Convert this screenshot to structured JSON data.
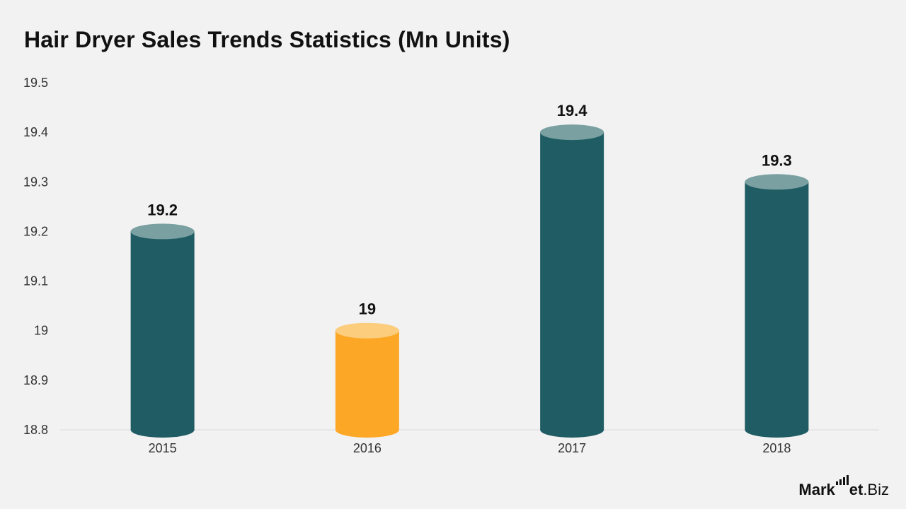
{
  "chart_data": {
    "type": "bar",
    "title": "Hair Dryer Sales Trends Statistics (Mn Units)",
    "xlabel": "",
    "ylabel": "",
    "categories": [
      "2015",
      "2016",
      "2017",
      "2018"
    ],
    "values": [
      19.2,
      19.0,
      19.4,
      19.3
    ],
    "value_labels": [
      "19.2",
      "19",
      "19.4",
      "19.3"
    ],
    "ylim": [
      18.8,
      19.5
    ],
    "yticks": [
      18.8,
      18.9,
      19,
      19.1,
      19.2,
      19.3,
      19.4,
      19.5
    ],
    "ytick_labels": [
      "18.8",
      "18.9",
      "19",
      "19.1",
      "19.2",
      "19.3",
      "19.4",
      "19.5"
    ],
    "bar_style": "cylinder",
    "grid": false,
    "legend": "none",
    "highlight_category": "2016",
    "colors": {
      "bar": "#1f5c63",
      "bar_top": "#7aa0a2",
      "highlight": "#fca726",
      "highlight_top": "#fccd7c",
      "baseline": "#d9d9d9",
      "background": "#f2f2f2"
    }
  },
  "brand": {
    "prefix": "Mark",
    "middle": "et",
    "suffix": ".Biz"
  }
}
